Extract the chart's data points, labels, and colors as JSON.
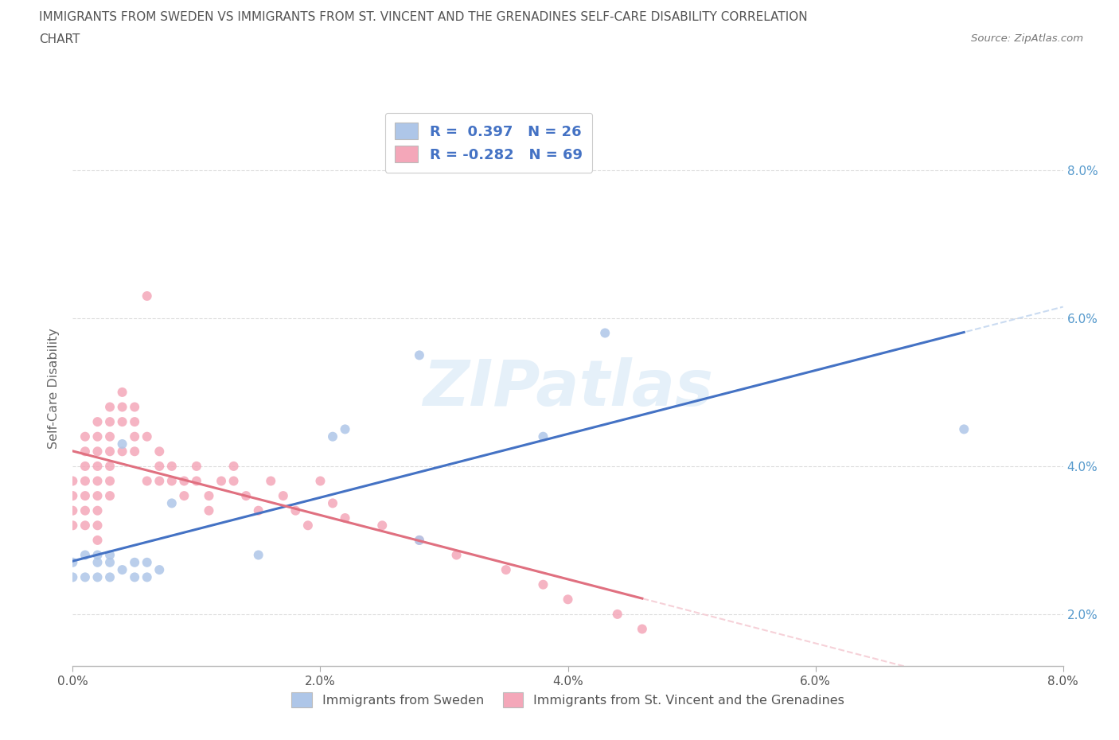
{
  "title_line1": "IMMIGRANTS FROM SWEDEN VS IMMIGRANTS FROM ST. VINCENT AND THE GRENADINES SELF-CARE DISABILITY CORRELATION",
  "title_line2": "CHART",
  "source_text": "Source: ZipAtlas.com",
  "ylabel": "Self-Care Disability",
  "xlim": [
    0.0,
    0.08
  ],
  "ylim": [
    0.013,
    0.088
  ],
  "watermark": "ZIPatlas",
  "sweden_color": "#aec6e8",
  "svg_color": "#f4a7b9",
  "trend_sweden_color": "#4472c4",
  "trend_svg_color": "#e07080",
  "trend_dashed_sweden": "#c5d8f0",
  "trend_dashed_svg": "#f5ccd4",
  "sweden_R": 0.397,
  "sweden_N": 26,
  "svg_R": -0.282,
  "svg_N": 69,
  "sweden_x": [
    0.0,
    0.0,
    0.001,
    0.001,
    0.002,
    0.002,
    0.002,
    0.003,
    0.003,
    0.003,
    0.004,
    0.004,
    0.005,
    0.005,
    0.006,
    0.006,
    0.007,
    0.008,
    0.015,
    0.021,
    0.022,
    0.028,
    0.028,
    0.038,
    0.043,
    0.072
  ],
  "sweden_y": [
    0.027,
    0.025,
    0.028,
    0.025,
    0.028,
    0.027,
    0.025,
    0.028,
    0.027,
    0.025,
    0.043,
    0.026,
    0.027,
    0.025,
    0.027,
    0.025,
    0.026,
    0.035,
    0.028,
    0.044,
    0.045,
    0.03,
    0.055,
    0.044,
    0.058,
    0.045
  ],
  "svg_x": [
    0.0,
    0.0,
    0.0,
    0.0,
    0.001,
    0.001,
    0.001,
    0.001,
    0.001,
    0.001,
    0.001,
    0.002,
    0.002,
    0.002,
    0.002,
    0.002,
    0.002,
    0.002,
    0.002,
    0.002,
    0.003,
    0.003,
    0.003,
    0.003,
    0.003,
    0.003,
    0.003,
    0.004,
    0.004,
    0.004,
    0.004,
    0.005,
    0.005,
    0.005,
    0.005,
    0.006,
    0.006,
    0.006,
    0.007,
    0.007,
    0.007,
    0.008,
    0.008,
    0.009,
    0.009,
    0.01,
    0.01,
    0.011,
    0.011,
    0.012,
    0.013,
    0.013,
    0.014,
    0.015,
    0.016,
    0.017,
    0.018,
    0.019,
    0.02,
    0.021,
    0.022,
    0.025,
    0.028,
    0.031,
    0.035,
    0.038,
    0.04,
    0.044,
    0.046
  ],
  "svg_y": [
    0.038,
    0.036,
    0.034,
    0.032,
    0.044,
    0.042,
    0.04,
    0.038,
    0.036,
    0.034,
    0.032,
    0.046,
    0.044,
    0.042,
    0.04,
    0.038,
    0.036,
    0.034,
    0.032,
    0.03,
    0.048,
    0.046,
    0.044,
    0.042,
    0.04,
    0.038,
    0.036,
    0.05,
    0.048,
    0.046,
    0.042,
    0.048,
    0.046,
    0.044,
    0.042,
    0.063,
    0.044,
    0.038,
    0.042,
    0.04,
    0.038,
    0.04,
    0.038,
    0.038,
    0.036,
    0.04,
    0.038,
    0.036,
    0.034,
    0.038,
    0.04,
    0.038,
    0.036,
    0.034,
    0.038,
    0.036,
    0.034,
    0.032,
    0.038,
    0.035,
    0.033,
    0.032,
    0.03,
    0.028,
    0.026,
    0.024,
    0.022,
    0.02,
    0.018
  ]
}
